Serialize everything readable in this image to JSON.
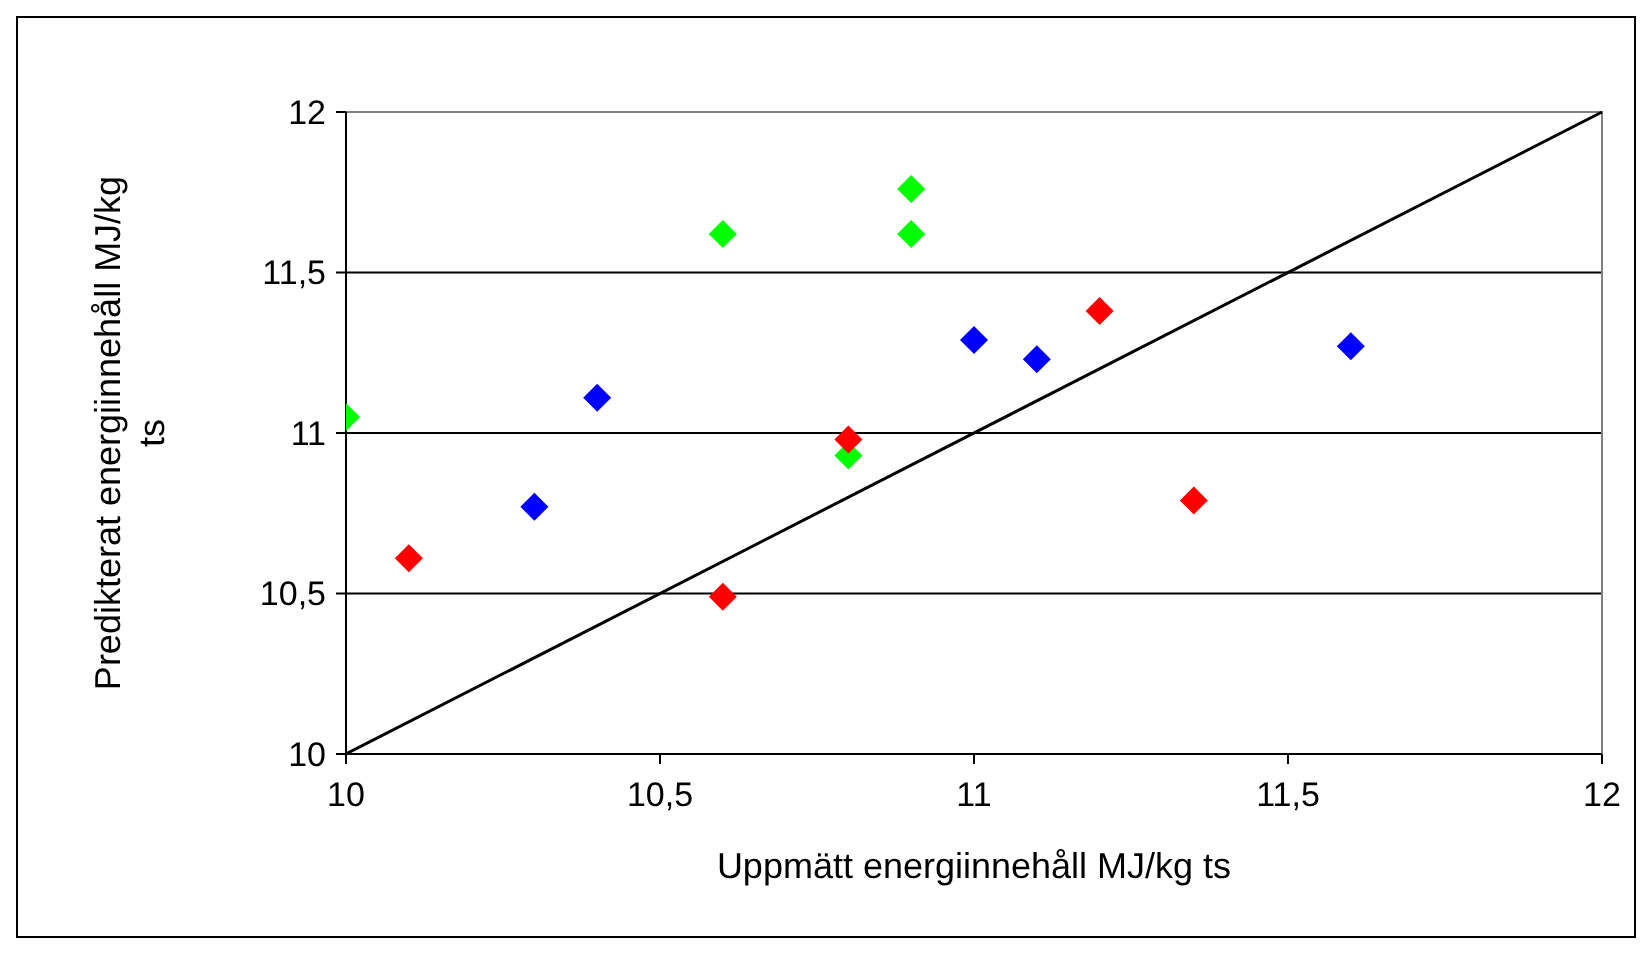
{
  "chart_data": {
    "type": "scatter",
    "xlabel": "Uppmätt energiinnehåll MJ/kg ts",
    "ylabel": "Predikterat energiinnehåll MJ/kg ts",
    "xlim": [
      10,
      12
    ],
    "xticks": [
      10,
      {
        "value": 10.5,
        "label": "10,5"
      },
      11,
      {
        "value": 11.5,
        "label": "11,5"
      },
      12
    ],
    "ylim": [
      10,
      12
    ],
    "yticks": [
      10,
      {
        "value": 10.5,
        "label": "10,5"
      },
      11,
      {
        "value": 11.5,
        "label": "11,5"
      },
      12
    ],
    "grid": "y",
    "marker": "diamond",
    "series": [
      {
        "color": "#00ff00",
        "x": [
          10,
          10.6,
          10.9,
          10.9,
          10.8
        ],
        "values": [
          11.05,
          11.62,
          11.76,
          11.62,
          10.93
        ]
      },
      {
        "color": "#0000ff",
        "x": [
          10.3,
          10.4,
          11,
          11.1,
          11.6
        ],
        "values": [
          10.77,
          11.11,
          11.29,
          11.23,
          11.27
        ]
      },
      {
        "color": "#ff0000",
        "x": [
          10.1,
          10.6,
          10.8,
          11.2,
          11.35
        ],
        "values": [
          10.61,
          10.49,
          10.98,
          11.38,
          10.79
        ]
      },
      {
        "type": "line",
        "color": "#000000",
        "marker": "none",
        "line_style": "solid",
        "x": [
          10,
          12
        ],
        "values": [
          10,
          12
        ]
      }
    ]
  }
}
